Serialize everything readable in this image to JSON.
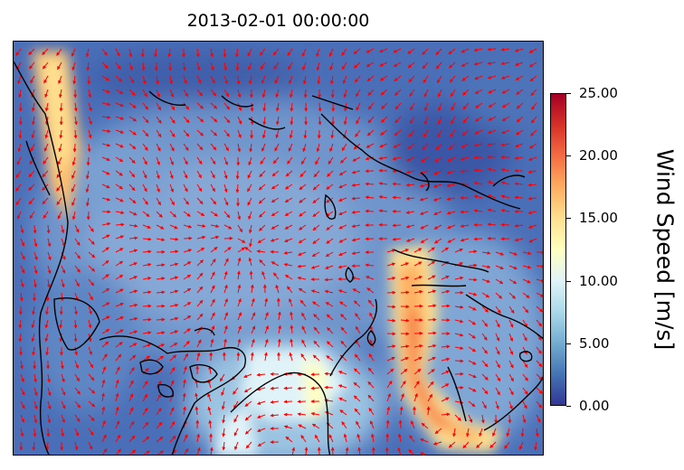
{
  "title": "2013-02-01 00:00:00",
  "colorbar": {
    "label": "Wind Speed [m/s]",
    "min": 0,
    "max": 25,
    "ticks": [
      "0.00",
      "5.00",
      "10.00",
      "15.00",
      "20.00",
      "25.00"
    ],
    "colors": [
      "#313695",
      "#4575b4",
      "#74add1",
      "#abd9e9",
      "#e0f3f8",
      "#ffffbf",
      "#fee090",
      "#fdae61",
      "#f46d43",
      "#d73027",
      "#a50026"
    ]
  },
  "map": {
    "arrow_color": "#ff0000",
    "coastline_color": "#000000"
  }
}
